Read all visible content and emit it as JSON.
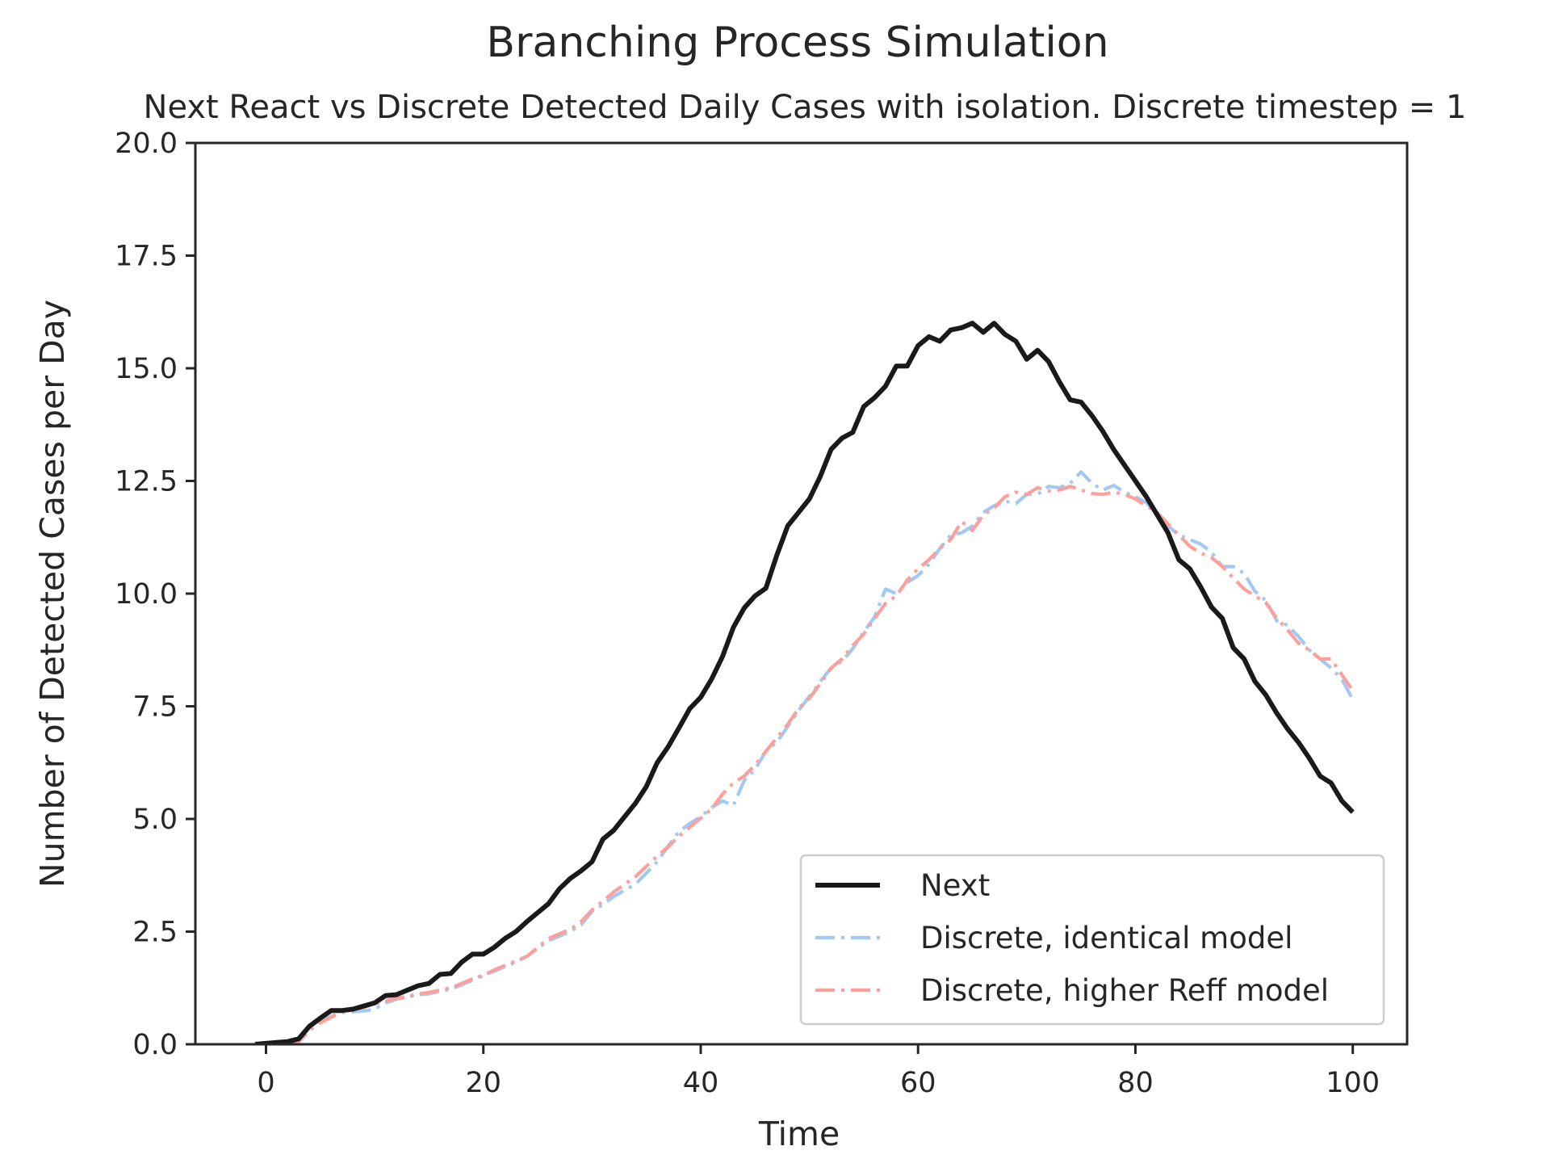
{
  "suptitle": "Branching Process Simulation",
  "chart_data": {
    "type": "line",
    "title": "Next React vs Discrete Detected Daily Cases with isolation. Discrete timestep = 1",
    "xlabel": "Time",
    "ylabel": "Number of Detected Cases per Day",
    "xlim": [
      -6.5,
      105
    ],
    "ylim": [
      0,
      20
    ],
    "xticks": [
      0,
      20,
      40,
      60,
      80,
      100
    ],
    "yticks": [
      0.0,
      2.5,
      5.0,
      7.5,
      10.0,
      12.5,
      15.0,
      17.5,
      20.0
    ],
    "ytick_labels": [
      "0.0",
      "2.5",
      "5.0",
      "7.5",
      "10.0",
      "12.5",
      "15.0",
      "17.5",
      "20.0"
    ],
    "grid": false,
    "legend_position": "lower right",
    "series": [
      {
        "name": "Next",
        "color": "#1a1a1a",
        "style": "solid",
        "x": [
          -1,
          0,
          1,
          2,
          3,
          4,
          5,
          6,
          7,
          8,
          9,
          10,
          11,
          12,
          13,
          14,
          15,
          16,
          17,
          18,
          19,
          20,
          21,
          22,
          23,
          24,
          25,
          26,
          27,
          28,
          29,
          30,
          31,
          32,
          33,
          34,
          35,
          36,
          37,
          38,
          39,
          40,
          41,
          42,
          43,
          44,
          45,
          46,
          47,
          48,
          49,
          50,
          51,
          52,
          53,
          54,
          55,
          56,
          57,
          58,
          59,
          60,
          61,
          62,
          63,
          64,
          65,
          66,
          67,
          68,
          69,
          70,
          71,
          72,
          73,
          74,
          75,
          76,
          77,
          78,
          79,
          80,
          81,
          82,
          83,
          84,
          85,
          86,
          87,
          88,
          89,
          90,
          91,
          92,
          93,
          94,
          95,
          96,
          97,
          98,
          99,
          100
        ],
        "values": [
          0.0,
          0.02,
          0.04,
          0.06,
          0.12,
          0.4,
          0.58,
          0.75,
          0.75,
          0.78,
          0.85,
          0.92,
          1.08,
          1.1,
          1.2,
          1.3,
          1.35,
          1.55,
          1.57,
          1.82,
          2.0,
          2.0,
          2.15,
          2.35,
          2.5,
          2.72,
          2.92,
          3.12,
          3.45,
          3.68,
          3.85,
          4.05,
          4.55,
          4.75,
          5.05,
          5.35,
          5.72,
          6.25,
          6.6,
          7.02,
          7.45,
          7.7,
          8.1,
          8.6,
          9.25,
          9.68,
          9.95,
          10.12,
          10.85,
          11.5,
          11.8,
          12.1,
          12.6,
          13.2,
          13.45,
          13.58,
          14.15,
          14.35,
          14.6,
          15.05,
          15.05,
          15.5,
          15.7,
          15.6,
          15.85,
          15.9,
          16.0,
          15.8,
          16.0,
          15.75,
          15.6,
          15.2,
          15.4,
          15.15,
          14.7,
          14.3,
          14.25,
          13.95,
          13.6,
          13.2,
          12.85,
          12.5,
          12.15,
          11.75,
          11.35,
          10.75,
          10.55,
          10.15,
          9.7,
          9.45,
          8.8,
          8.55,
          8.05,
          7.75,
          7.35,
          7.0,
          6.7,
          6.35,
          5.95,
          5.8,
          5.4,
          5.15
        ]
      },
      {
        "name": "Discrete, identical model",
        "color": "#a1c9f4",
        "style": "dashdot",
        "x": [
          -1,
          0,
          1,
          2,
          3,
          4,
          5,
          6,
          7,
          8,
          9,
          10,
          11,
          12,
          13,
          14,
          15,
          16,
          17,
          18,
          19,
          20,
          21,
          22,
          23,
          24,
          25,
          26,
          27,
          28,
          29,
          30,
          31,
          32,
          33,
          34,
          35,
          36,
          37,
          38,
          39,
          40,
          41,
          42,
          43,
          44,
          45,
          46,
          47,
          48,
          49,
          50,
          51,
          52,
          53,
          54,
          55,
          56,
          57,
          58,
          59,
          60,
          61,
          62,
          63,
          64,
          65,
          66,
          67,
          68,
          69,
          70,
          71,
          72,
          73,
          74,
          75,
          76,
          77,
          78,
          79,
          80,
          81,
          82,
          83,
          84,
          85,
          86,
          87,
          88,
          89,
          90,
          91,
          92,
          93,
          94,
          95,
          96,
          97,
          98,
          99,
          100
        ],
        "values": [
          0.0,
          0.0,
          0.0,
          0.0,
          0.05,
          0.3,
          0.5,
          0.62,
          0.7,
          0.72,
          0.74,
          0.78,
          0.92,
          1.0,
          1.05,
          1.1,
          1.12,
          1.18,
          1.22,
          1.32,
          1.42,
          1.55,
          1.62,
          1.72,
          1.82,
          1.95,
          2.12,
          2.3,
          2.4,
          2.5,
          2.65,
          2.95,
          3.1,
          3.28,
          3.42,
          3.55,
          3.8,
          4.05,
          4.4,
          4.72,
          4.9,
          5.05,
          5.25,
          5.4,
          5.3,
          5.85,
          6.1,
          6.5,
          6.7,
          7.05,
          7.4,
          7.72,
          8.05,
          8.35,
          8.5,
          8.78,
          9.15,
          9.48,
          10.1,
          10.0,
          10.25,
          10.4,
          10.65,
          11.0,
          11.3,
          11.35,
          11.5,
          11.8,
          11.95,
          12.05,
          12.0,
          12.2,
          12.2,
          12.38,
          12.35,
          12.45,
          12.7,
          12.45,
          12.3,
          12.4,
          12.25,
          12.15,
          12.02,
          11.75,
          11.5,
          11.3,
          11.2,
          11.1,
          10.92,
          10.6,
          10.6,
          10.45,
          10.05,
          9.85,
          9.4,
          9.3,
          9.05,
          8.75,
          8.55,
          8.35,
          8.1,
          7.65
        ]
      },
      {
        "name": "Discrete, higher Reff model",
        "color": "#ff9f9b",
        "style": "dashdot",
        "x": [
          -1,
          0,
          1,
          2,
          3,
          4,
          5,
          6,
          7,
          8,
          9,
          10,
          11,
          12,
          13,
          14,
          15,
          16,
          17,
          18,
          19,
          20,
          21,
          22,
          23,
          24,
          25,
          26,
          27,
          28,
          29,
          30,
          31,
          32,
          33,
          34,
          35,
          36,
          37,
          38,
          39,
          40,
          41,
          42,
          43,
          44,
          45,
          46,
          47,
          48,
          49,
          50,
          51,
          52,
          53,
          54,
          55,
          56,
          57,
          58,
          59,
          60,
          61,
          62,
          63,
          64,
          65,
          66,
          67,
          68,
          69,
          70,
          71,
          72,
          73,
          74,
          75,
          76,
          77,
          78,
          79,
          80,
          81,
          82,
          83,
          84,
          85,
          86,
          87,
          88,
          89,
          90,
          91,
          92,
          93,
          94,
          95,
          96,
          97,
          98,
          99,
          100
        ],
        "values": [
          0.0,
          0.0,
          0.0,
          0.0,
          0.05,
          0.32,
          0.48,
          0.6,
          0.72,
          0.76,
          0.82,
          0.9,
          0.96,
          1.02,
          1.06,
          1.12,
          1.15,
          1.2,
          1.25,
          1.35,
          1.45,
          1.52,
          1.65,
          1.75,
          1.85,
          1.95,
          2.15,
          2.35,
          2.45,
          2.55,
          2.72,
          2.98,
          3.18,
          3.38,
          3.55,
          3.72,
          3.95,
          4.18,
          4.38,
          4.62,
          4.82,
          5.02,
          5.22,
          5.55,
          5.8,
          5.95,
          6.2,
          6.5,
          6.8,
          7.1,
          7.45,
          7.68,
          8.0,
          8.35,
          8.55,
          8.85,
          9.1,
          9.45,
          9.78,
          9.95,
          10.3,
          10.55,
          10.75,
          11.0,
          11.2,
          11.6,
          11.4,
          11.75,
          11.9,
          12.15,
          12.25,
          12.2,
          12.35,
          12.28,
          12.3,
          12.38,
          12.3,
          12.22,
          12.2,
          12.25,
          12.2,
          12.1,
          11.95,
          11.8,
          11.55,
          11.3,
          11.05,
          10.9,
          10.8,
          10.6,
          10.35,
          10.1,
          9.95,
          9.8,
          9.45,
          9.2,
          8.9,
          8.75,
          8.55,
          8.55,
          8.2,
          7.85
        ]
      }
    ]
  }
}
